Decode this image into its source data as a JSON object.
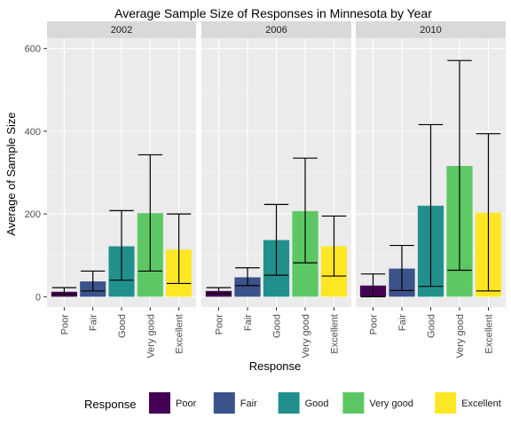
{
  "chart_data": {
    "type": "bar",
    "title": "Average Sample Size of Responses in Minnesota by Year",
    "xlabel": "Response",
    "ylabel": "Average of Sample Size",
    "ylim": [
      -25,
      625
    ],
    "yticks": [
      0,
      200,
      400,
      600
    ],
    "grid": true,
    "legend": {
      "title": "Response",
      "position": "bottom"
    },
    "categories": [
      "Poor",
      "Fair",
      "Good",
      "Very good",
      "Excellent"
    ],
    "colors": [
      "#440154",
      "#3B528B",
      "#21908C",
      "#5DC863",
      "#FDE725"
    ],
    "facets": [
      {
        "label": "2002",
        "values": [
          12,
          37,
          122,
          202,
          114
        ],
        "err_low": [
          6,
          14,
          40,
          62,
          32
        ],
        "err_high": [
          22,
          62,
          208,
          343,
          200
        ]
      },
      {
        "label": "2006",
        "values": [
          14,
          47,
          137,
          207,
          122
        ],
        "err_low": [
          8,
          27,
          52,
          82,
          50
        ],
        "err_high": [
          22,
          70,
          223,
          335,
          195
        ]
      },
      {
        "label": "2010",
        "values": [
          27,
          68,
          220,
          316,
          203
        ],
        "err_low": [
          0,
          15,
          25,
          64,
          14
        ],
        "err_high": [
          55,
          124,
          416,
          571,
          394
        ]
      }
    ]
  }
}
